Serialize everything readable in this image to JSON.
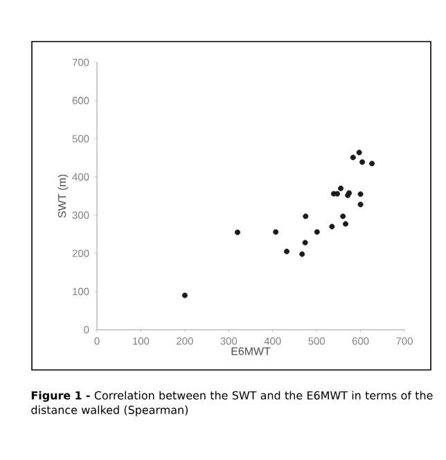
{
  "chart_data": {
    "type": "scatter",
    "xlabel": "E6MWT",
    "ylabel": "SWT (m)",
    "x": [
      200,
      320,
      407,
      432,
      474,
      475,
      467,
      501,
      535,
      539,
      547,
      555,
      560,
      566,
      571,
      574,
      600,
      600,
      583,
      597,
      604,
      626
    ],
    "values": [
      90,
      255,
      256,
      205,
      228,
      297,
      198,
      256,
      270,
      356,
      356,
      370,
      297,
      277,
      352,
      358,
      355,
      328,
      451,
      464,
      439,
      435
    ],
    "color": "#1a1a1a",
    "xlim": [
      0,
      700
    ],
    "xticks": [
      0,
      100,
      200,
      300,
      400,
      500,
      600,
      700
    ],
    "ylim": [
      0,
      700
    ],
    "yticks": [
      0,
      100,
      200,
      300,
      400,
      500,
      600,
      700
    ],
    "grid": false,
    "annotations": [
      "**Figure 1 -** Correlation between the SWT and the E6MWT in terms of the distance walked (Spearman)"
    ]
  }
}
